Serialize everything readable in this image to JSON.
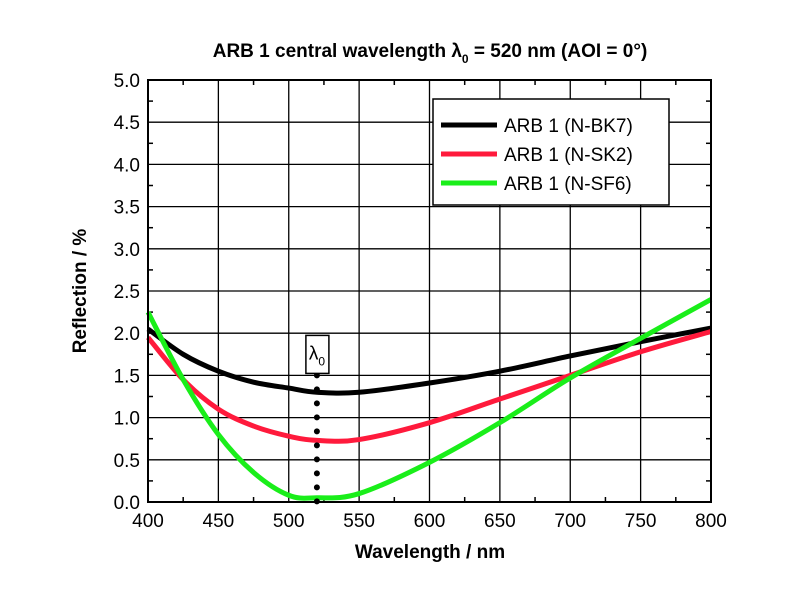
{
  "chart_data": {
    "type": "line",
    "title": "ARB 1 central wavelength λ0 = 520 nm (AOI = 0°)",
    "title_parts": {
      "before": "ARB 1 central wavelength λ",
      "sub": "0",
      "after": " = 520 nm (AOI = 0°)"
    },
    "xlabel": "Wavelength / nm",
    "ylabel": "Reflection / %",
    "xlim": [
      400,
      800
    ],
    "ylim": [
      0,
      5
    ],
    "xticks": [
      400,
      450,
      500,
      550,
      600,
      650,
      700,
      750,
      800
    ],
    "yticks": [
      "0.0",
      "0.5",
      "1.0",
      "1.5",
      "2.0",
      "2.5",
      "3.0",
      "3.5",
      "4.0",
      "4.5",
      "5.0"
    ],
    "grid": true,
    "legend_position": "top-right",
    "annotation": {
      "label": "λ",
      "sub": "0",
      "x": 520,
      "y_from": 0,
      "y_to": 1.5
    },
    "x": [
      400,
      425,
      450,
      475,
      500,
      520,
      550,
      600,
      650,
      700,
      750,
      800
    ],
    "series": [
      {
        "name": "ARB 1 (N-BK7)",
        "color": "#000000",
        "values": [
          2.05,
          1.75,
          1.55,
          1.42,
          1.35,
          1.3,
          1.3,
          1.41,
          1.55,
          1.73,
          1.9,
          2.06
        ]
      },
      {
        "name": "ARB 1 (N-SK2)",
        "color": "#ff1a3c",
        "values": [
          1.95,
          1.45,
          1.1,
          0.9,
          0.78,
          0.73,
          0.74,
          0.94,
          1.22,
          1.5,
          1.78,
          2.02
        ]
      },
      {
        "name": "ARB 1 (N-SF6)",
        "color": "#1aee1a",
        "values": [
          2.25,
          1.45,
          0.8,
          0.35,
          0.08,
          0.05,
          0.1,
          0.47,
          0.94,
          1.47,
          1.94,
          2.4
        ]
      }
    ]
  }
}
